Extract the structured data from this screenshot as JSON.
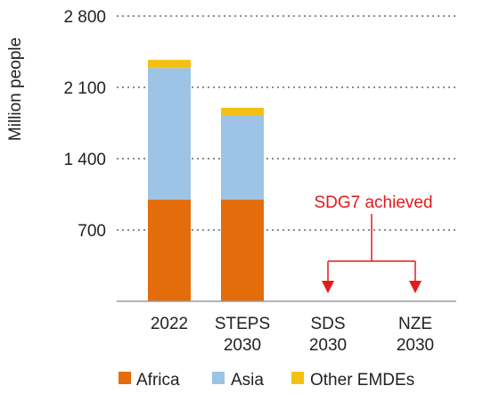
{
  "chart_data": {
    "type": "bar",
    "stacked": true,
    "ylabel": "Million people",
    "ylim": [
      0,
      2800
    ],
    "yticks": [
      700,
      1400,
      2100,
      2800
    ],
    "ytick_labels": [
      "700",
      "1 400",
      "2 100",
      "2 800"
    ],
    "grid": true,
    "categories": [
      [
        "2022"
      ],
      [
        "STEPS",
        "2030"
      ],
      [
        "SDS",
        "2030"
      ],
      [
        "NZE",
        "2030"
      ]
    ],
    "series": [
      {
        "name": "Africa",
        "color": "#E46C0A",
        "values": [
          1000,
          1000,
          0,
          0
        ]
      },
      {
        "name": "Asia",
        "color": "#9DC3E6",
        "values": [
          1290,
          825,
          0,
          0
        ]
      },
      {
        "name": "Other EMDEs",
        "color": "#F5C014",
        "values": [
          80,
          75,
          0,
          0
        ]
      }
    ],
    "annotation": {
      "text": "SDG7 achieved",
      "color": "#E41A1C",
      "targets": [
        2,
        3
      ]
    },
    "legend_position": "bottom"
  }
}
